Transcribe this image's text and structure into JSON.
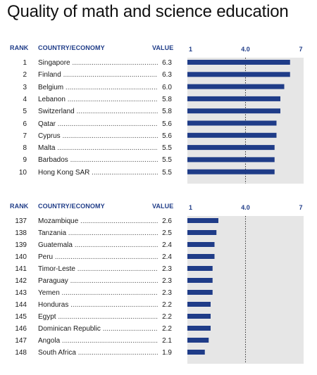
{
  "title": "Quality of math and science education",
  "headers": {
    "rank": "RANK",
    "country": "COUNTRY/ECONOMY",
    "value": "VALUE"
  },
  "chart_data": [
    {
      "type": "bar",
      "orientation": "horizontal",
      "xlim": [
        1,
        7
      ],
      "ticks": [
        "1",
        "4.0",
        "7"
      ],
      "reference_line": 4.0,
      "bar_color": "#1f3c88",
      "background_color": "#e6e6e6",
      "rows": [
        {
          "rank": "1",
          "name": "Singapore",
          "value": "6.3"
        },
        {
          "rank": "2",
          "name": "Finland",
          "value": "6.3"
        },
        {
          "rank": "3",
          "name": "Belgium",
          "value": "6.0"
        },
        {
          "rank": "4",
          "name": "Lebanon",
          "value": "5.8"
        },
        {
          "rank": "5",
          "name": "Switzerland",
          "value": "5.8"
        },
        {
          "rank": "6",
          "name": "Qatar",
          "value": "5.6"
        },
        {
          "rank": "7",
          "name": "Cyprus",
          "value": "5.6"
        },
        {
          "rank": "8",
          "name": "Malta",
          "value": "5.5"
        },
        {
          "rank": "9",
          "name": "Barbados",
          "value": "5.5"
        },
        {
          "rank": "10",
          "name": "Hong Kong SAR",
          "value": "5.5"
        }
      ]
    },
    {
      "type": "bar",
      "orientation": "horizontal",
      "xlim": [
        1,
        7
      ],
      "ticks": [
        "1",
        "4.0",
        "7"
      ],
      "reference_line": 4.0,
      "bar_color": "#1f3c88",
      "background_color": "#e6e6e6",
      "rows": [
        {
          "rank": "137",
          "name": "Mozambique",
          "value": "2.6"
        },
        {
          "rank": "138",
          "name": "Tanzania",
          "value": "2.5"
        },
        {
          "rank": "139",
          "name": "Guatemala",
          "value": "2.4"
        },
        {
          "rank": "140",
          "name": "Peru",
          "value": "2.4"
        },
        {
          "rank": "141",
          "name": "Timor-Leste",
          "value": "2.3"
        },
        {
          "rank": "142",
          "name": "Paraguay",
          "value": "2.3"
        },
        {
          "rank": "143",
          "name": "Yemen",
          "value": "2.3"
        },
        {
          "rank": "144",
          "name": "Honduras",
          "value": "2.2"
        },
        {
          "rank": "145",
          "name": "Egypt",
          "value": "2.2"
        },
        {
          "rank": "146",
          "name": "Dominican Republic",
          "value": "2.2"
        },
        {
          "rank": "147",
          "name": "Angola",
          "value": "2.1"
        },
        {
          "rank": "148",
          "name": "South Africa",
          "value": "1.9"
        }
      ]
    }
  ]
}
